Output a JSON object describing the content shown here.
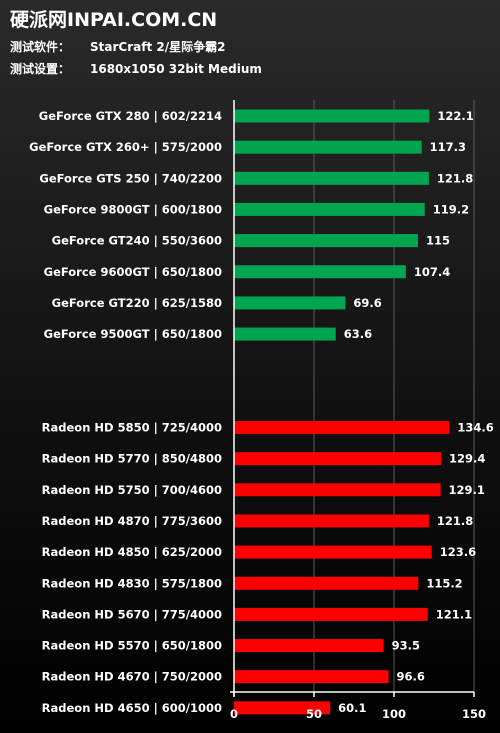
{
  "header": {
    "brand": "硬派网INPAI.COM.CN",
    "software_label": "测试软件：",
    "software_value": "StarCraft 2/星际争霸2",
    "settings_label": "测试设置：",
    "settings_value": "1680x1050 32bit  Medium"
  },
  "colors": {
    "geforce": "#00a550",
    "radeon": "#ff0000",
    "grid": "#5a5a5a",
    "axis": "#ffffff"
  },
  "chart_data": {
    "type": "bar",
    "orientation": "horizontal",
    "xlim": [
      0,
      150
    ],
    "xticks": [
      0,
      50,
      100,
      150
    ],
    "grid": true,
    "groups": [
      {
        "color_key": "geforce",
        "categories": [
          "GeForce GTX 280 | 602/2214",
          "GeForce GTX 260+ | 575/2000",
          "GeForce GTS 250 | 740/2200",
          "GeForce 9800GT | 600/1800",
          "GeForce GT240 | 550/3600",
          "GeForce 9600GT | 650/1800",
          "GeForce GT220 | 625/1580",
          "GeForce 9500GT | 650/1800"
        ],
        "values": [
          122.1,
          117.3,
          121.8,
          119.2,
          115,
          107.4,
          69.6,
          63.6
        ]
      },
      {
        "color_key": "radeon",
        "categories": [
          "Radeon HD 5850 | 725/4000",
          "Radeon HD 5770 | 850/4800",
          "Radeon HD 5750 | 700/4600",
          "Radeon HD 4870 | 775/3600",
          "Radeon HD 4850 | 625/2000",
          "Radeon HD 4830 | 575/1800",
          "Radeon HD 5670 | 775/4000",
          "Radeon HD 5570 | 650/1800",
          "Radeon HD 4670 | 750/2000",
          "Radeon HD 4650 | 600/1000"
        ],
        "values": [
          134.6,
          129.4,
          129.1,
          121.8,
          123.6,
          115.2,
          121.1,
          93.5,
          96.6,
          60.1
        ]
      }
    ]
  }
}
